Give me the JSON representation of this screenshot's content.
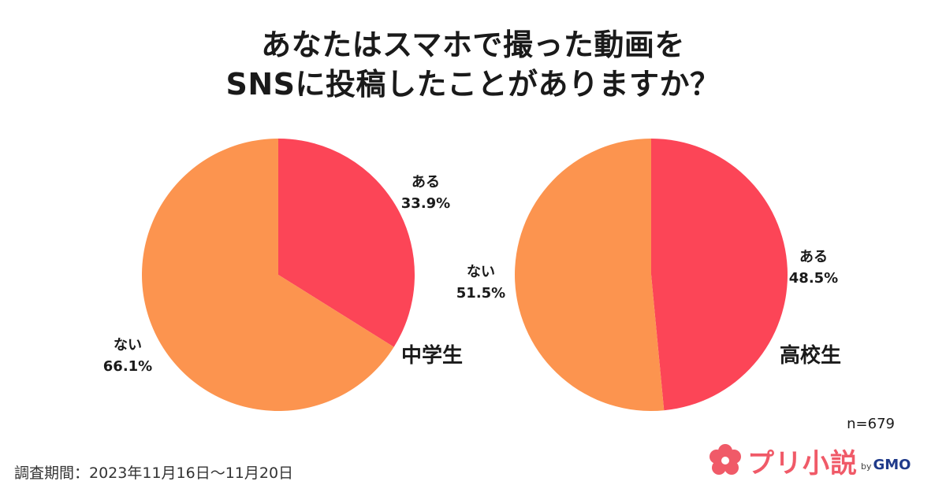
{
  "title": {
    "line1": "あなたはスマホで撮った動画を",
    "line2": "SNSに投稿したことがありますか？"
  },
  "colors": {
    "aru": "#fc4557",
    "nai": "#fc944f"
  },
  "chart_data": [
    {
      "type": "pie",
      "group_label": "中学生",
      "slices": [
        {
          "label": "ある",
          "value": 33.9,
          "display": "33.9%",
          "color": "#fc4557"
        },
        {
          "label": "ない",
          "value": 66.1,
          "display": "66.1%",
          "color": "#fc944f"
        }
      ]
    },
    {
      "type": "pie",
      "group_label": "高校生",
      "slices": [
        {
          "label": "ある",
          "value": 48.5,
          "display": "48.5%",
          "color": "#fc4557"
        },
        {
          "label": "ない",
          "value": 51.5,
          "display": "51.5%",
          "color": "#fc944f"
        }
      ]
    }
  ],
  "sample_size": "n=679",
  "survey_period": "調査期間：2023年11月16日～11月20日",
  "logo": {
    "name": "プリ小説",
    "by": "by",
    "company": "GMO",
    "icon": "flower-logo-icon"
  }
}
